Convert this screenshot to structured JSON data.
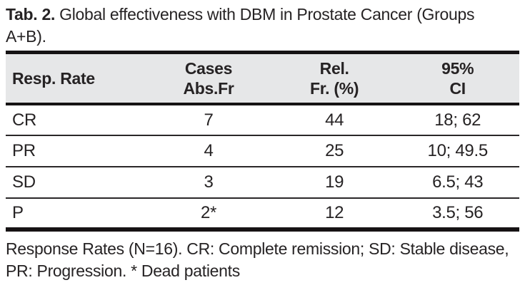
{
  "title": {
    "label": "Tab. 2.",
    "line1": "Global effectiveness with DBM in Prostate Cancer (Groups",
    "line2": "A+B)."
  },
  "table": {
    "header": {
      "col1": "Resp. Rate",
      "col2_line1": "Cases",
      "col2_line2": "Abs.Fr",
      "col3_line1": "Rel.",
      "col3_line2": "Fr. (%)",
      "col4_line1": "95%",
      "col4_line2": "CI"
    },
    "rows": [
      {
        "label": "CR",
        "cases": "7",
        "rel_fr": "44",
        "ci": "18; 62"
      },
      {
        "label": "PR",
        "cases": "4",
        "rel_fr": "25",
        "ci": "10; 49.5"
      },
      {
        "label": "SD",
        "cases": "3",
        "rel_fr": "19",
        "ci": "6.5; 43"
      },
      {
        "label": "P",
        "cases": "2*",
        "rel_fr": "12",
        "ci": "3.5; 56"
      }
    ]
  },
  "footnote": {
    "line1": "Response Rates (N=16). CR: Complete remission; SD: Stable disease,",
    "line2": "PR: Progression. * Dead patients"
  },
  "colors": {
    "header_bg": "#e6e7e8",
    "text": "#262324",
    "rule_black": "#161314",
    "row_separator": "#2a2728",
    "background": "#ffffff"
  }
}
